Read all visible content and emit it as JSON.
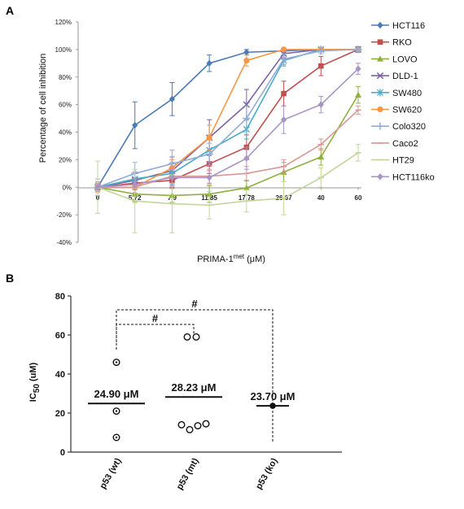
{
  "panels": {
    "a": "A",
    "b": "B"
  },
  "chart_data": [
    {
      "type": "line",
      "ylabel": "Percentage of cell inhibition",
      "xlabel": "PRIMA-1met (μM)",
      "xlabel_main": "PRIMA-1",
      "xlabel_sup": "met",
      "xlabel_unit": " (μM)",
      "categories": [
        "0",
        "5.72",
        "7.9",
        "11.85",
        "17.78",
        "26.67",
        "40",
        "60"
      ],
      "y_ticks": [
        "120%",
        "100%",
        "80%",
        "60%",
        "40%",
        "20%",
        "0%",
        "-20%",
        "-40%"
      ],
      "ylim": [
        -40,
        120
      ],
      "legend_position": "right",
      "series": [
        {
          "name": "HCT116",
          "color": "#4a7ab8",
          "marker": "diamond",
          "values": [
            0,
            45,
            64,
            90,
            98,
            99,
            100,
            100
          ],
          "err": [
            3,
            17,
            12,
            6,
            2,
            1,
            1,
            1
          ]
        },
        {
          "name": "RKO",
          "color": "#c0504d",
          "marker": "square",
          "values": [
            0,
            3,
            5,
            17,
            29,
            68,
            88,
            100
          ],
          "err": [
            3,
            4,
            5,
            7,
            9,
            9,
            7,
            2
          ]
        },
        {
          "name": "LOVO",
          "color": "#8fb03e",
          "marker": "triangle",
          "values": [
            0,
            -5,
            -6,
            -5,
            -0.5,
            11,
            22,
            67
          ],
          "err": [
            4,
            6,
            5,
            6,
            5,
            7,
            6,
            6
          ]
        },
        {
          "name": "DLD-1",
          "color": "#7d62a3",
          "marker": "x",
          "values": [
            0,
            5,
            12,
            36,
            60,
            97,
            100,
            100
          ],
          "err": [
            3,
            5,
            10,
            13,
            11,
            3,
            1,
            1
          ]
        },
        {
          "name": "SW480",
          "color": "#4bacc6",
          "marker": "star",
          "values": [
            0,
            6,
            10,
            27,
            42,
            92,
            100,
            100
          ],
          "err": [
            3,
            5,
            8,
            9,
            7,
            4,
            1,
            1
          ]
        },
        {
          "name": "SW620",
          "color": "#f79646",
          "marker": "circle",
          "values": [
            0,
            0,
            14,
            36,
            92,
            100,
            100,
            100
          ],
          "err": [
            3,
            4,
            6,
            9,
            4,
            1,
            1,
            1
          ]
        },
        {
          "name": "Colo320",
          "color": "#93acd4",
          "marker": "plus",
          "values": [
            0,
            10,
            17,
            24,
            50,
            93,
            99,
            100
          ],
          "err": [
            6,
            8,
            10,
            8,
            9,
            4,
            2,
            1
          ]
        },
        {
          "name": "Caco2",
          "color": "#d99795",
          "marker": "dash",
          "values": [
            0,
            0,
            8,
            8,
            10,
            15,
            31,
            56
          ],
          "err": [
            4,
            4,
            5,
            5,
            5,
            5,
            4,
            3
          ]
        },
        {
          "name": "HT29",
          "color": "#c2d69b",
          "marker": "dash",
          "values": [
            0,
            -10,
            -12,
            -13,
            -10,
            -8,
            7,
            25
          ],
          "err": [
            19,
            23,
            21,
            10,
            8,
            12,
            7,
            6
          ]
        },
        {
          "name": "HCT116ko",
          "color": "#a895c5",
          "marker": "diamond",
          "values": [
            0,
            2,
            7,
            7,
            21,
            49,
            60,
            86
          ],
          "err": [
            2,
            4,
            6,
            5,
            8,
            10,
            6,
            4
          ]
        }
      ]
    },
    {
      "type": "scatter",
      "ylabel_main": "IC",
      "ylabel_sub": "50",
      "ylabel_unit": " (uM)",
      "categories": [
        "p53 (wt)",
        "p53 (mt)",
        "p53 (ko)"
      ],
      "y_ticks": [
        "80",
        "60",
        "40",
        "20",
        "0"
      ],
      "ylim": [
        0,
        80
      ],
      "groups": [
        {
          "name": "p53 (wt)",
          "points": [
            46,
            21,
            7.5
          ],
          "marker": "ring-dot",
          "mean": 24.9,
          "mean_label": "24.90 μM"
        },
        {
          "name": "p53 (mt)",
          "points": [
            59,
            59,
            14,
            11.5,
            13.5,
            14.5
          ],
          "marker": "open",
          "mean": 28.23,
          "mean_label": "28.23 μM"
        },
        {
          "name": "p53 (ko)",
          "points": [
            23.7
          ],
          "marker": "filled",
          "mean": 23.7,
          "mean_label": "23.70 μM"
        }
      ],
      "annotations": [
        {
          "from": "p53 (wt)",
          "to": "p53 (mt)",
          "label": "#"
        },
        {
          "from": "p53 (wt)",
          "to": "p53 (ko)",
          "label": "#"
        }
      ]
    }
  ]
}
